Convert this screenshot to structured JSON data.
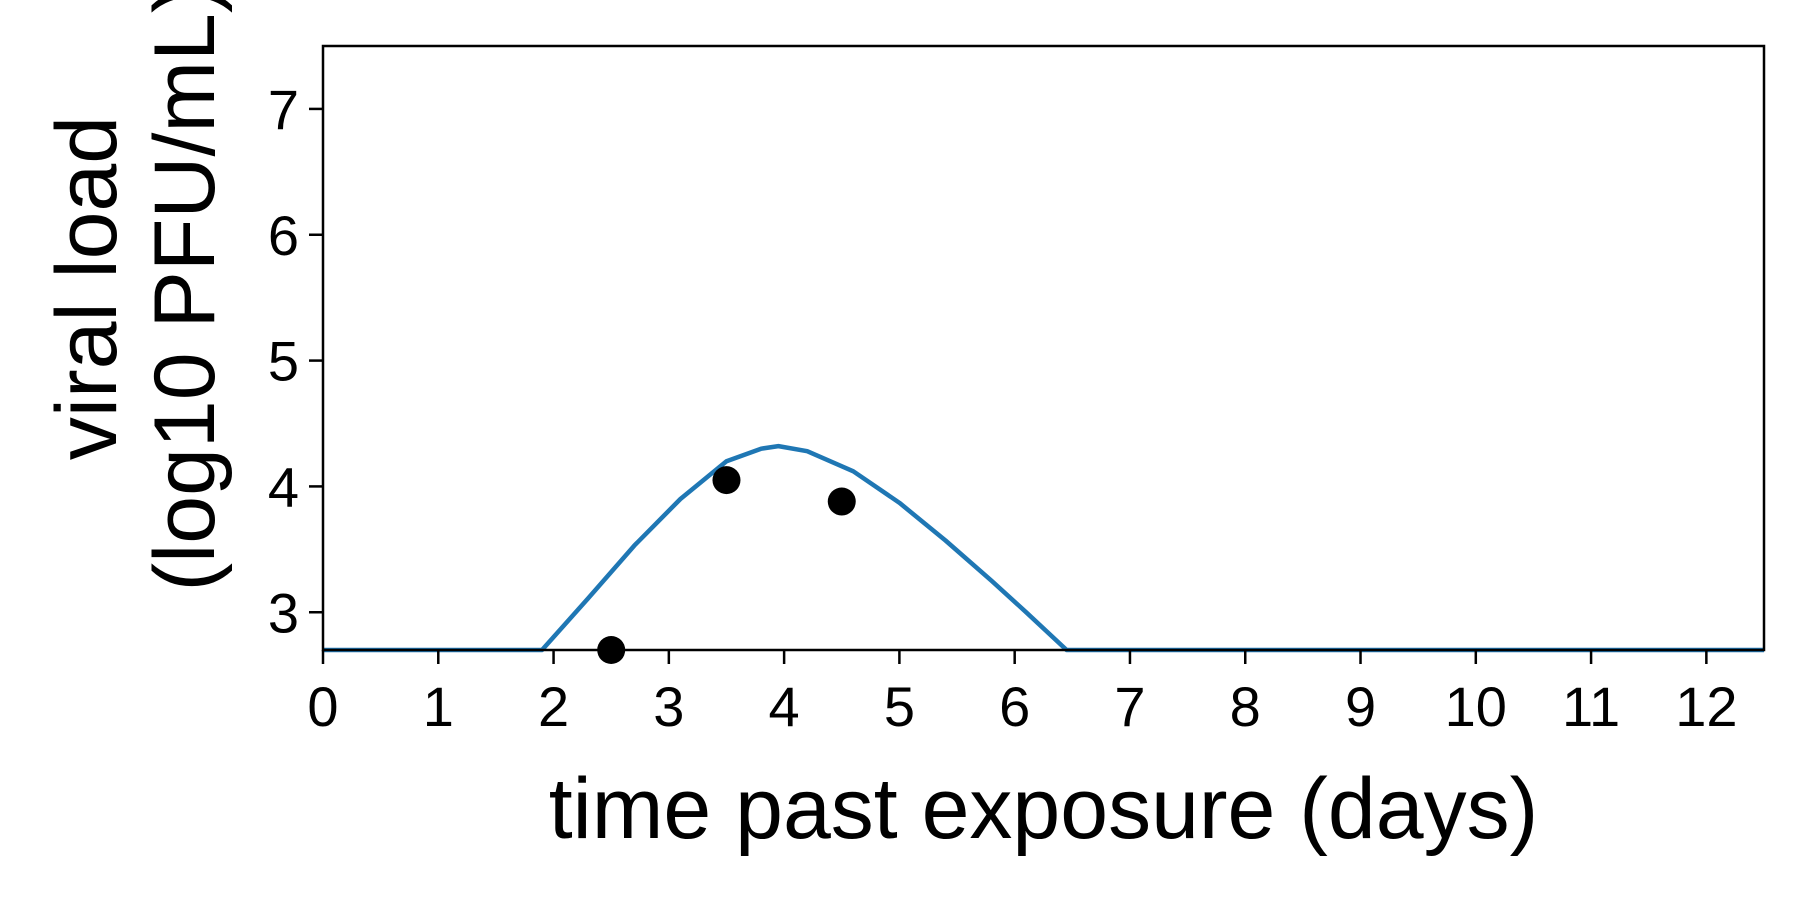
{
  "chart_data": {
    "type": "line",
    "xlabel": "time past exposure (days)",
    "ylabel_line1": "viral load",
    "ylabel_line2": "(log10 PFU/mL)",
    "xlim": [
      0,
      12.5
    ],
    "ylim": [
      2.7,
      7.5
    ],
    "x_ticks": [
      0,
      1,
      2,
      3,
      4,
      5,
      6,
      7,
      8,
      9,
      10,
      11,
      12
    ],
    "y_ticks": [
      3,
      4,
      5,
      6,
      7
    ],
    "grid": false,
    "series": [
      {
        "kind": "line",
        "color": "#1f77b4",
        "x": [
          0,
          1.9,
          2.3,
          2.7,
          3.1,
          3.5,
          3.8,
          3.95,
          4.2,
          4.6,
          5.0,
          5.4,
          5.8,
          6.1,
          6.45,
          7,
          8,
          9,
          10,
          11,
          12,
          12.5
        ],
        "y": [
          2.7,
          2.7,
          3.11,
          3.53,
          3.9,
          4.2,
          4.3,
          4.32,
          4.28,
          4.12,
          3.87,
          3.57,
          3.25,
          3.0,
          2.7,
          2.7,
          2.7,
          2.7,
          2.7,
          2.7,
          2.7,
          2.7
        ]
      },
      {
        "kind": "scatter",
        "color": "#000000",
        "x": [
          2.5,
          3.5,
          4.5
        ],
        "y": [
          2.7,
          4.05,
          3.88
        ]
      }
    ]
  }
}
